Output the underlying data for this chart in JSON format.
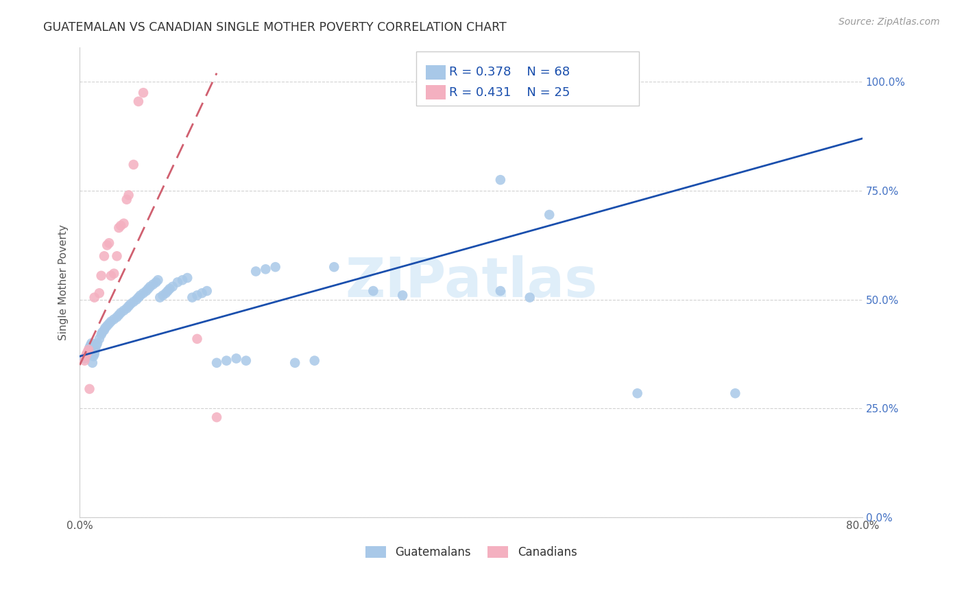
{
  "title": "GUATEMALAN VS CANADIAN SINGLE MOTHER POVERTY CORRELATION CHART",
  "source": "Source: ZipAtlas.com",
  "ylabel": "Single Mother Poverty",
  "watermark": "ZIPatlas",
  "blue_color": "#a8c8e8",
  "pink_color": "#f4b0c0",
  "blue_line_color": "#1a4fad",
  "pink_line_color": "#d06070",
  "legend_text_color": "#1a4fad",
  "right_axis_color": "#4472c4",
  "blue_scatter": [
    [
      0.005,
      0.365
    ],
    [
      0.007,
      0.37
    ],
    [
      0.008,
      0.375
    ],
    [
      0.009,
      0.38
    ],
    [
      0.01,
      0.385
    ],
    [
      0.01,
      0.39
    ],
    [
      0.011,
      0.395
    ],
    [
      0.012,
      0.4
    ],
    [
      0.013,
      0.355
    ],
    [
      0.014,
      0.37
    ],
    [
      0.015,
      0.375
    ],
    [
      0.015,
      0.38
    ],
    [
      0.016,
      0.385
    ],
    [
      0.017,
      0.395
    ],
    [
      0.018,
      0.4
    ],
    [
      0.02,
      0.41
    ],
    [
      0.022,
      0.42
    ],
    [
      0.023,
      0.425
    ],
    [
      0.025,
      0.43
    ],
    [
      0.026,
      0.435
    ],
    [
      0.028,
      0.44
    ],
    [
      0.03,
      0.445
    ],
    [
      0.032,
      0.45
    ],
    [
      0.035,
      0.455
    ],
    [
      0.038,
      0.46
    ],
    [
      0.04,
      0.465
    ],
    [
      0.042,
      0.47
    ],
    [
      0.045,
      0.475
    ],
    [
      0.048,
      0.48
    ],
    [
      0.05,
      0.485
    ],
    [
      0.052,
      0.49
    ],
    [
      0.055,
      0.495
    ],
    [
      0.058,
      0.5
    ],
    [
      0.06,
      0.505
    ],
    [
      0.062,
      0.51
    ],
    [
      0.065,
      0.515
    ],
    [
      0.068,
      0.52
    ],
    [
      0.07,
      0.525
    ],
    [
      0.072,
      0.53
    ],
    [
      0.075,
      0.535
    ],
    [
      0.078,
      0.54
    ],
    [
      0.08,
      0.545
    ],
    [
      0.082,
      0.505
    ],
    [
      0.085,
      0.51
    ],
    [
      0.088,
      0.515
    ],
    [
      0.09,
      0.52
    ],
    [
      0.092,
      0.525
    ],
    [
      0.095,
      0.53
    ],
    [
      0.1,
      0.54
    ],
    [
      0.105,
      0.545
    ],
    [
      0.11,
      0.55
    ],
    [
      0.115,
      0.505
    ],
    [
      0.12,
      0.51
    ],
    [
      0.125,
      0.515
    ],
    [
      0.13,
      0.52
    ],
    [
      0.14,
      0.355
    ],
    [
      0.15,
      0.36
    ],
    [
      0.16,
      0.365
    ],
    [
      0.17,
      0.36
    ],
    [
      0.18,
      0.565
    ],
    [
      0.19,
      0.57
    ],
    [
      0.2,
      0.575
    ],
    [
      0.22,
      0.355
    ],
    [
      0.24,
      0.36
    ],
    [
      0.26,
      0.575
    ],
    [
      0.3,
      0.52
    ],
    [
      0.33,
      0.51
    ],
    [
      0.43,
      0.52
    ],
    [
      0.43,
      0.775
    ],
    [
      0.46,
      0.505
    ],
    [
      0.48,
      0.695
    ],
    [
      0.57,
      0.285
    ],
    [
      0.67,
      0.285
    ]
  ],
  "pink_scatter": [
    [
      0.005,
      0.36
    ],
    [
      0.006,
      0.37
    ],
    [
      0.007,
      0.375
    ],
    [
      0.008,
      0.38
    ],
    [
      0.009,
      0.385
    ],
    [
      0.01,
      0.295
    ],
    [
      0.015,
      0.505
    ],
    [
      0.02,
      0.515
    ],
    [
      0.022,
      0.555
    ],
    [
      0.025,
      0.6
    ],
    [
      0.028,
      0.625
    ],
    [
      0.03,
      0.63
    ],
    [
      0.032,
      0.555
    ],
    [
      0.035,
      0.56
    ],
    [
      0.038,
      0.6
    ],
    [
      0.04,
      0.665
    ],
    [
      0.042,
      0.67
    ],
    [
      0.045,
      0.675
    ],
    [
      0.048,
      0.73
    ],
    [
      0.05,
      0.74
    ],
    [
      0.055,
      0.81
    ],
    [
      0.06,
      0.955
    ],
    [
      0.065,
      0.975
    ],
    [
      0.12,
      0.41
    ],
    [
      0.14,
      0.23
    ]
  ],
  "xlim": [
    0.0,
    0.8
  ],
  "ylim": [
    0.0,
    1.08
  ],
  "x_ticks": [
    0.0,
    0.1,
    0.2,
    0.3,
    0.4,
    0.5,
    0.6,
    0.7,
    0.8
  ],
  "y_ticks": [
    0.0,
    0.25,
    0.5,
    0.75,
    1.0
  ],
  "x_tick_labels": [
    "0.0%",
    "",
    "",
    "",
    "",
    "",
    "",
    "",
    "80.0%"
  ],
  "y_tick_labels_right": [
    "0.0%",
    "25.0%",
    "50.0%",
    "75.0%",
    "100.0%"
  ]
}
